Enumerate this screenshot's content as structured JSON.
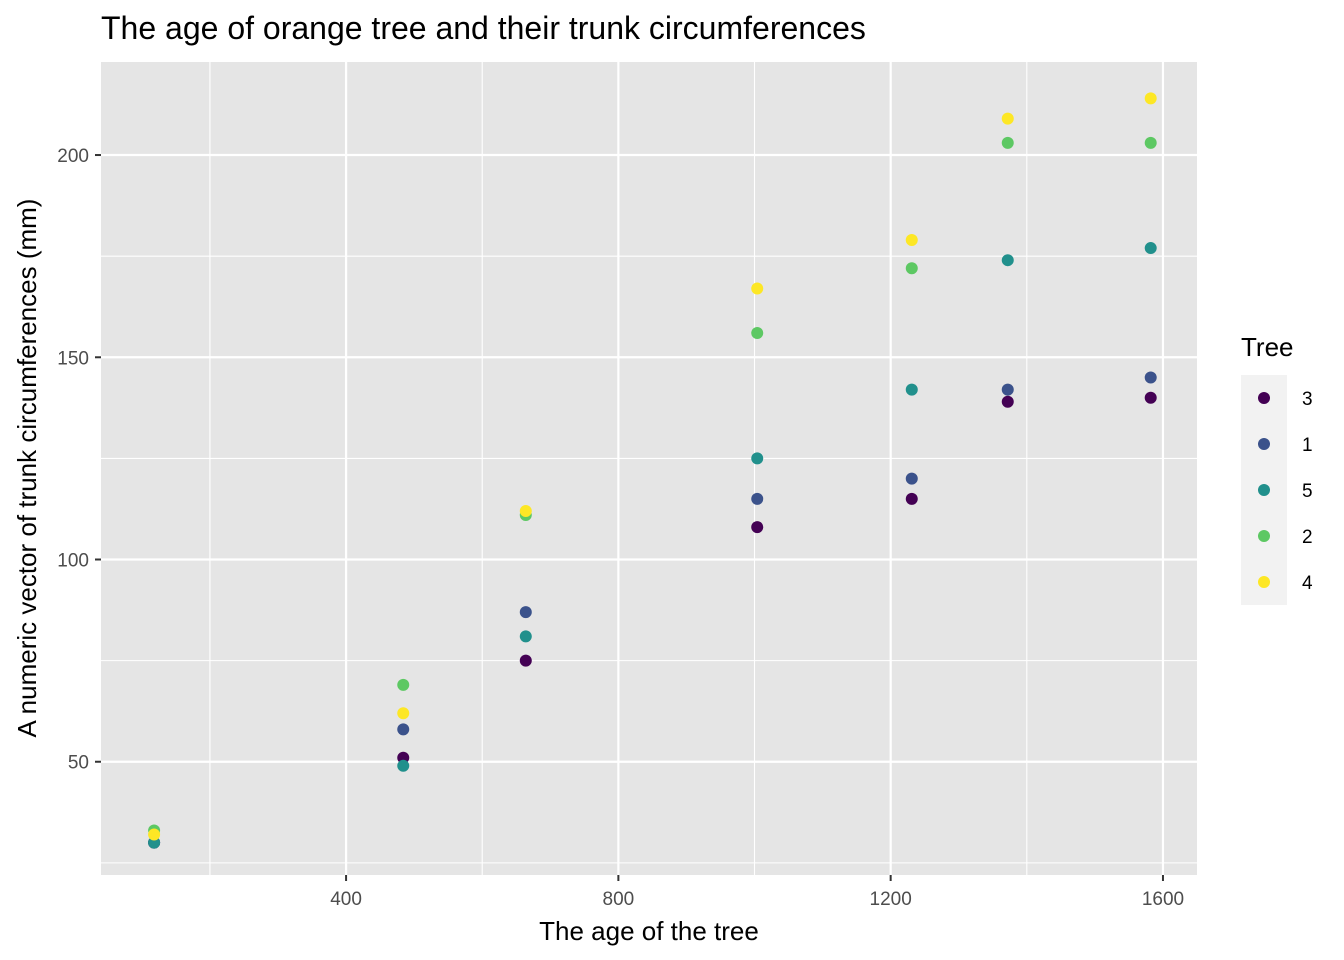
{
  "chart_data": {
    "type": "scatter",
    "title": "The age of orange tree and their trunk circumferences",
    "xlabel": "The age of the tree",
    "ylabel": "A numeric vector of trunk circumferences (mm)",
    "xlim": [
      40,
      1650
    ],
    "ylim": [
      22,
      223
    ],
    "x_ticks": [
      400,
      800,
      1200,
      1600
    ],
    "x_tick_labels": [
      "400",
      "800",
      "1200",
      "1600"
    ],
    "x_minor": [
      200,
      600,
      1000,
      1400
    ],
    "y_ticks": [
      50,
      100,
      150,
      200
    ],
    "y_tick_labels": [
      "50",
      "100",
      "150",
      "200"
    ],
    "y_minor": [
      25,
      75,
      125,
      175
    ],
    "grid": true,
    "panel_background": "#e5e5e5",
    "legend": {
      "title": "Tree",
      "placement": "right",
      "entries": [
        "3",
        "1",
        "5",
        "2",
        "4"
      ]
    },
    "x": [
      118,
      484,
      664,
      1004,
      1231,
      1372,
      1582
    ],
    "series": [
      {
        "name": "3",
        "color": "#440154",
        "values": [
          30,
          51,
          75,
          108,
          115,
          139,
          140
        ]
      },
      {
        "name": "1",
        "color": "#3b528b",
        "values": [
          30,
          58,
          87,
          115,
          120,
          142,
          145
        ]
      },
      {
        "name": "5",
        "color": "#21908c",
        "values": [
          30,
          49,
          81,
          125,
          142,
          174,
          177
        ]
      },
      {
        "name": "2",
        "color": "#5dc863",
        "values": [
          33,
          69,
          111,
          156,
          172,
          203,
          203
        ]
      },
      {
        "name": "4",
        "color": "#fde725",
        "values": [
          32,
          62,
          112,
          167,
          179,
          209,
          214
        ]
      }
    ]
  }
}
